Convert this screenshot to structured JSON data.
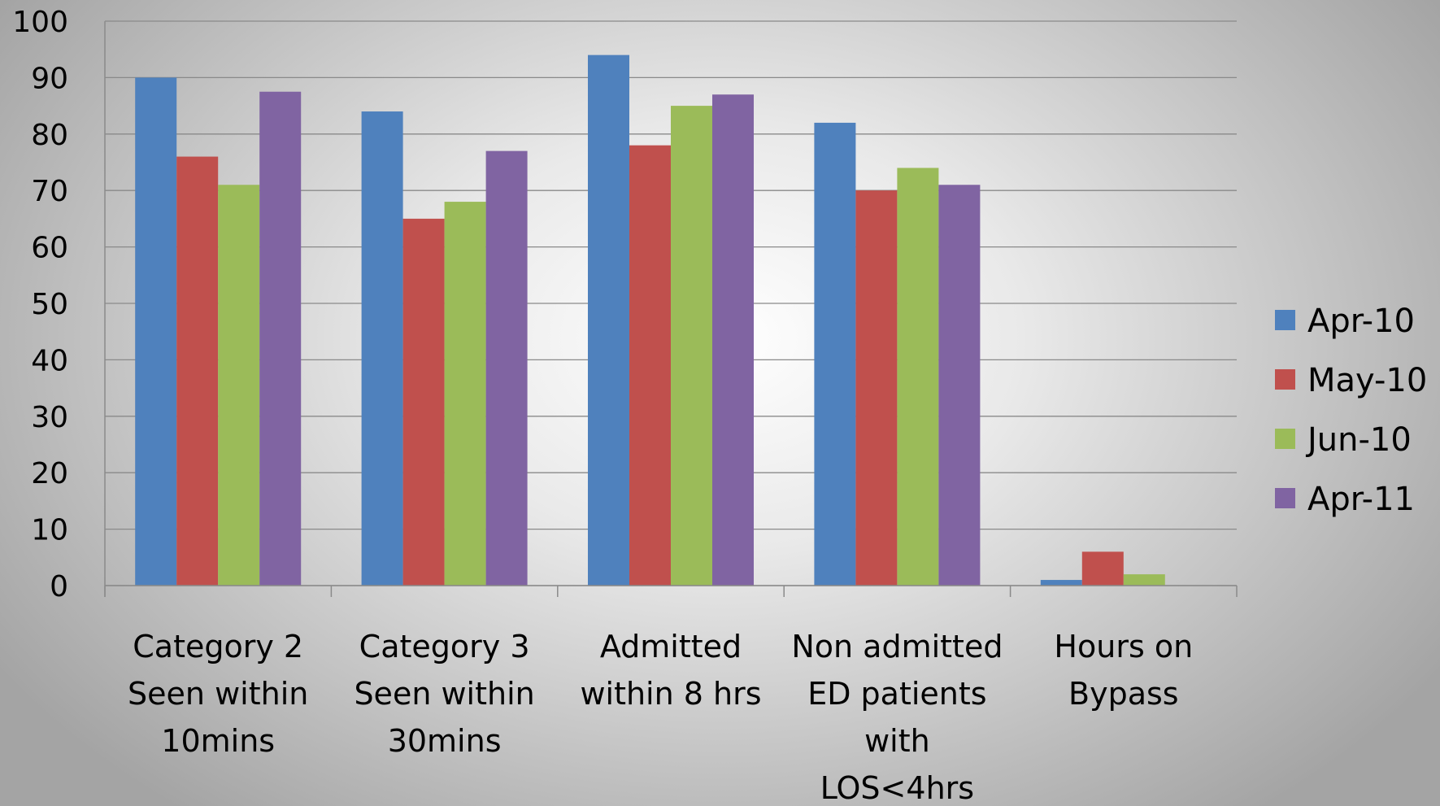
{
  "chart_data": {
    "type": "bar",
    "title": "",
    "xlabel": "",
    "ylabel": "",
    "ylim": [
      0,
      100
    ],
    "yticks": [
      0,
      10,
      20,
      30,
      40,
      50,
      60,
      70,
      80,
      90,
      100
    ],
    "grid": true,
    "legend_position": "right",
    "categories": [
      [
        "Category 2",
        "Seen within",
        "10mins"
      ],
      [
        "Category 3",
        "Seen within",
        "30mins"
      ],
      [
        "Admitted",
        "within 8 hrs"
      ],
      [
        "Non admitted",
        "ED patients",
        "with",
        "LOS<4hrs"
      ],
      [
        "Hours on",
        "Bypass"
      ]
    ],
    "series": [
      {
        "name": "Apr-10",
        "color": "#4f81bd",
        "values": [
          90,
          84,
          94,
          82,
          1
        ]
      },
      {
        "name": "May-10",
        "color": "#c0504d",
        "values": [
          76,
          65,
          78,
          70,
          6
        ]
      },
      {
        "name": "Jun-10",
        "color": "#9bbb59",
        "values": [
          71,
          68,
          85,
          74,
          2
        ]
      },
      {
        "name": "Apr-11",
        "color": "#8064a2",
        "values": [
          87.5,
          77,
          87,
          71,
          0
        ]
      }
    ]
  }
}
